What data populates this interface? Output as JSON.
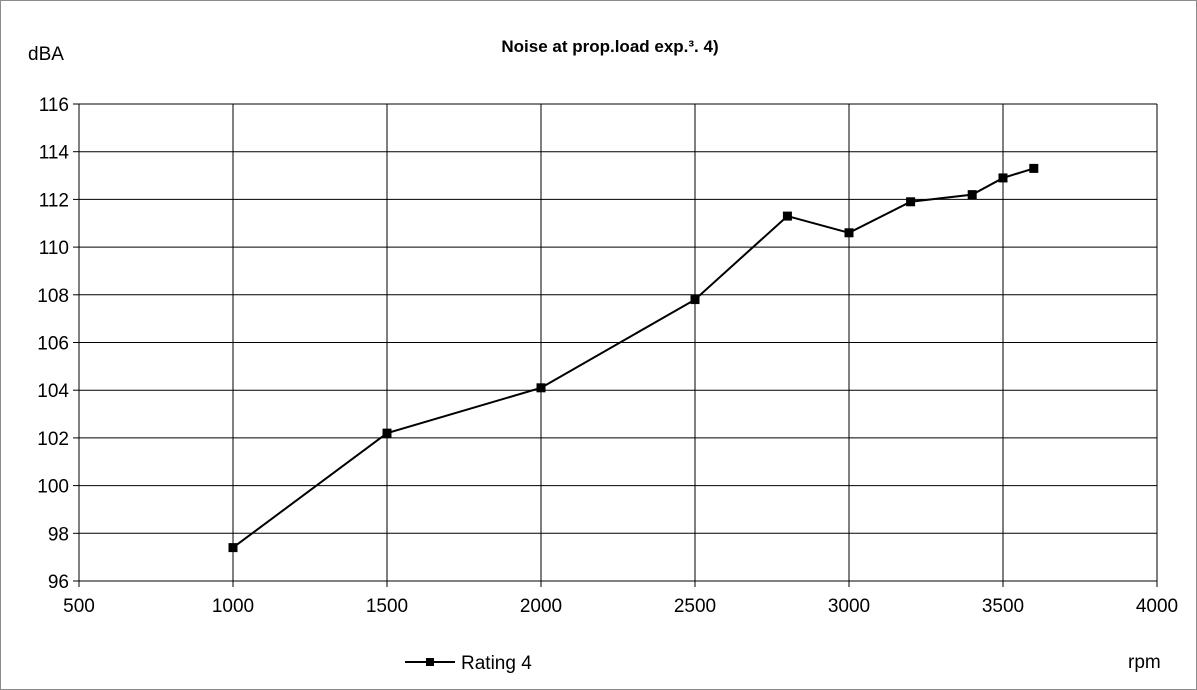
{
  "chart_data": {
    "type": "line",
    "title": "Noise at prop.load exp.³. 4)",
    "ylabel": "dBA",
    "xlabel": "rpm",
    "xlim": [
      500,
      4000
    ],
    "ylim": [
      96,
      116
    ],
    "x_ticks": [
      500,
      1000,
      1500,
      2000,
      2500,
      3000,
      3500,
      4000
    ],
    "y_ticks": [
      96,
      98,
      100,
      102,
      104,
      106,
      108,
      110,
      112,
      114,
      116
    ],
    "grid": true,
    "legend_position": "bottom-center",
    "series": [
      {
        "name": "Rating 4",
        "marker": "square",
        "color": "#000000",
        "x": [
          1000,
          1500,
          2000,
          2500,
          2800,
          3000,
          3200,
          3400,
          3500,
          3600
        ],
        "y": [
          97.4,
          102.2,
          104.1,
          107.8,
          111.3,
          110.6,
          111.9,
          112.2,
          112.9,
          113.3
        ]
      }
    ]
  }
}
